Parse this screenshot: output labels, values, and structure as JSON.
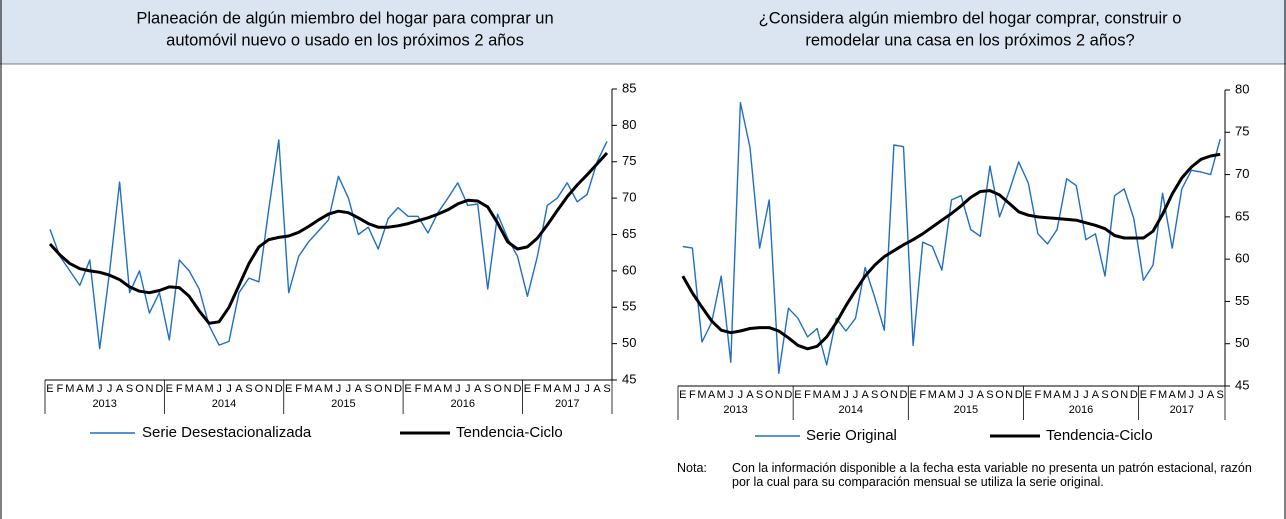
{
  "chart_data": [
    {
      "type": "line",
      "title": [
        "Planeación de algún miembro del hogar para comprar un",
        "automóvil nuevo o usado en los próximos 2 años"
      ],
      "categories": [
        "E",
        "F",
        "M",
        "A",
        "M",
        "J",
        "J",
        "A",
        "S",
        "O",
        "N",
        "D",
        "E",
        "F",
        "M",
        "A",
        "M",
        "J",
        "J",
        "A",
        "S",
        "O",
        "N",
        "D",
        "E",
        "F",
        "M",
        "A",
        "M",
        "J",
        "J",
        "A",
        "S",
        "O",
        "N",
        "D",
        "E",
        "F",
        "M",
        "A",
        "M",
        "J",
        "J",
        "A",
        "S",
        "O",
        "N",
        "D",
        "E",
        "F",
        "M",
        "A",
        "M",
        "J",
        "J",
        "A",
        "S"
      ],
      "years": [
        "2013",
        "2014",
        "2015",
        "2016",
        "2017"
      ],
      "ylim": [
        45,
        85
      ],
      "yticks": [
        45,
        50,
        55,
        60,
        65,
        70,
        75,
        80,
        85
      ],
      "series": [
        {
          "name": "Serie Desestacionalizada",
          "color": "#1f6fc5",
          "values": [
            65.7,
            62,
            60,
            58,
            61.5,
            49.3,
            60,
            72.2,
            57,
            60,
            54.2,
            57,
            50.5,
            61.5,
            60,
            57.5,
            52.5,
            49.8,
            50.3,
            57,
            59,
            58.5,
            68.5,
            78,
            57,
            62,
            64,
            65.5,
            67,
            73,
            70,
            65,
            66,
            63,
            67.2,
            68.7,
            67.5,
            67.5,
            65.2,
            68,
            70,
            72.1,
            69,
            69.2,
            57.5,
            67.8,
            64.5,
            62,
            56.5,
            62,
            69,
            70,
            72.1,
            69.5,
            70.5,
            75,
            77.8
          ]
        },
        {
          "name": "Tendencia-Ciclo",
          "color": "#000000",
          "values": [
            63.7,
            62.2,
            61,
            60.3,
            60,
            59.8,
            59.4,
            58.8,
            57.8,
            57.2,
            57,
            57.3,
            57.8,
            57.7,
            56.5,
            54.5,
            52.8,
            53,
            55,
            58,
            61,
            63.3,
            64.3,
            64.6,
            64.8,
            65.3,
            66.1,
            67,
            67.8,
            68.2,
            68,
            67.3,
            66.5,
            66,
            66,
            66.2,
            66.5,
            66.9,
            67.3,
            67.8,
            68.4,
            69.2,
            69.7,
            69.6,
            68.8,
            66.6,
            64,
            63,
            63.3,
            64.5,
            66.3,
            68.3,
            70.2,
            71.8,
            73.2,
            74.7,
            76.2
          ]
        }
      ]
    },
    {
      "type": "line",
      "title": [
        "¿Considera algún miembro del hogar comprar, construir o",
        "remodelar una casa en los próximos 2 años?"
      ],
      "categories": [
        "E",
        "F",
        "M",
        "A",
        "M",
        "J",
        "J",
        "A",
        "S",
        "O",
        "N",
        "D",
        "E",
        "F",
        "M",
        "A",
        "M",
        "J",
        "J",
        "A",
        "S",
        "O",
        "N",
        "D",
        "E",
        "F",
        "M",
        "A",
        "M",
        "J",
        "J",
        "A",
        "S",
        "O",
        "N",
        "D",
        "E",
        "F",
        "M",
        "A",
        "M",
        "J",
        "J",
        "A",
        "S",
        "O",
        "N",
        "D",
        "E",
        "F",
        "M",
        "A",
        "M",
        "J",
        "J",
        "A",
        "S"
      ],
      "years": [
        "2013",
        "2014",
        "2015",
        "2016",
        "2017"
      ],
      "ylim": [
        45,
        80
      ],
      "yticks": [
        45,
        50,
        55,
        60,
        65,
        70,
        75,
        80
      ],
      "series": [
        {
          "name": "Serie Original",
          "color": "#1f6fc5",
          "values": [
            61.5,
            61.3,
            50.2,
            52.5,
            58,
            47.8,
            78.5,
            73.2,
            61.3,
            67,
            46.5,
            54.2,
            53,
            50.8,
            51.8,
            47.5,
            53,
            51.5,
            53,
            59,
            55.5,
            51.6,
            73.5,
            73.3,
            49.8,
            62,
            61.5,
            58.7,
            67,
            67.5,
            63.5,
            62.7,
            71,
            65,
            68,
            71.5,
            69,
            63,
            61.8,
            63.5,
            69.5,
            68.7,
            62.3,
            63,
            58,
            67.5,
            68.3,
            64.8,
            57.5,
            59.3,
            67.8,
            61.3,
            68.3,
            70.5,
            70.3,
            70,
            74.2
          ]
        },
        {
          "name": "Tendencia-Ciclo",
          "color": "#000000",
          "values": [
            58,
            56,
            54.3,
            52.7,
            51.6,
            51.3,
            51.5,
            51.8,
            51.9,
            51.9,
            51.5,
            50.7,
            49.8,
            49.4,
            49.7,
            50.8,
            52.5,
            54.5,
            56.3,
            58,
            59.3,
            60.3,
            61,
            61.7,
            62.3,
            63,
            63.8,
            64.6,
            65.4,
            66.3,
            67.3,
            68,
            68.1,
            67.6,
            66.6,
            65.6,
            65.2,
            65,
            64.9,
            64.8,
            64.7,
            64.6,
            64.3,
            64,
            63.6,
            62.8,
            62.5,
            62.5,
            62.5,
            63.3,
            65.3,
            67.7,
            69.6,
            70.9,
            71.8,
            72.2,
            72.4
          ]
        }
      ],
      "note_label": "Nota:",
      "note": "Con la información disponible a la fecha esta variable no presenta un patrón estacional, razón por la cual para su comparación mensual se utiliza la serie original."
    }
  ]
}
